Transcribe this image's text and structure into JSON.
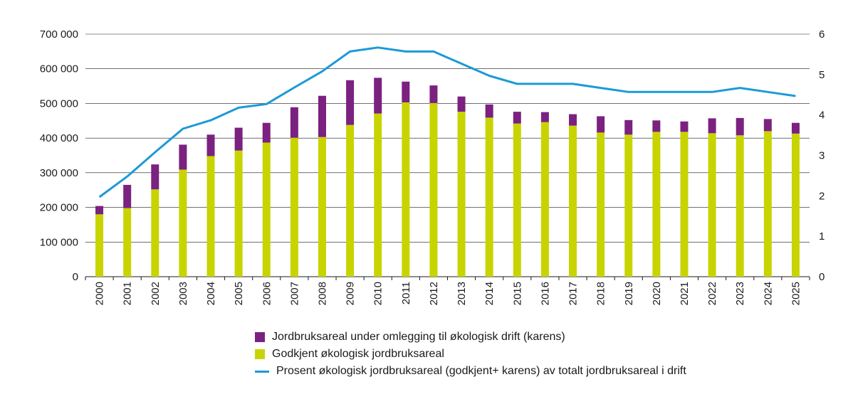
{
  "chart_data": {
    "type": "bar",
    "stacked": true,
    "categories": [
      "2000",
      "2001",
      "2002",
      "2003",
      "2004",
      "2005",
      "2006",
      "2007",
      "2008",
      "2009",
      "2010",
      "2011",
      "2012",
      "2013",
      "2014",
      "2015",
      "2016",
      "2017",
      "2018",
      "2019",
      "2020",
      "2021",
      "2022",
      "2023",
      "2024",
      "2025"
    ],
    "series": [
      {
        "name": "Godkjent økologisk jordbruksareal",
        "color": "#c8d400",
        "values": [
          180000,
          198000,
          252000,
          309000,
          348000,
          364000,
          387000,
          401000,
          403000,
          438000,
          471000,
          503000,
          501000,
          476000,
          459000,
          442000,
          446000,
          436000,
          416000,
          410000,
          418000,
          418000,
          414000,
          408000,
          420000,
          413000
        ]
      },
      {
        "name": "Jordbruksareal under omlegging til økologisk drift (karens)",
        "color": "#7b2180",
        "values": [
          24000,
          67000,
          72000,
          72000,
          62000,
          66000,
          57000,
          88000,
          119000,
          129000,
          103000,
          60000,
          51000,
          44000,
          38000,
          34000,
          29000,
          33000,
          47000,
          42000,
          33000,
          30000,
          43000,
          50000,
          35000,
          31000
        ]
      },
      {
        "name": "Prosent økologisk jordbruksareal (godkjent+ karens) av totalt jordbruksareal i drift",
        "type": "line",
        "axis": "right",
        "color": "#1c9ad6",
        "values": [
          1.97,
          2.48,
          3.08,
          3.66,
          3.87,
          4.18,
          4.27,
          4.68,
          5.08,
          5.57,
          5.67,
          5.57,
          5.57,
          5.27,
          4.97,
          4.77,
          4.77,
          4.77,
          4.67,
          4.57,
          4.57,
          4.57,
          4.57,
          4.67,
          4.57,
          4.47
        ]
      }
    ],
    "ylim": [
      0,
      700000
    ],
    "y2lim": [
      0,
      6
    ],
    "yticks": [
      "0",
      "100 000",
      "200 000",
      "300 000",
      "400 000",
      "500 000",
      "600 000",
      "700 000"
    ],
    "y2ticks": [
      "0",
      "1",
      "2",
      "3",
      "4",
      "5",
      "6"
    ],
    "grid": true,
    "legend_position": "bottom",
    "legend": [
      {
        "label": "Jordbruksareal under omlegging til økologisk drift (karens)",
        "kind": "box",
        "color": "#7b2180"
      },
      {
        "label": "Godkjent økologisk jordbruksareal",
        "kind": "box",
        "color": "#c8d400"
      },
      {
        "label": "Prosent økologisk jordbruksareal (godkjent+ karens) av totalt jordbruksareal i drift",
        "kind": "line",
        "color": "#1c9ad6"
      }
    ]
  }
}
